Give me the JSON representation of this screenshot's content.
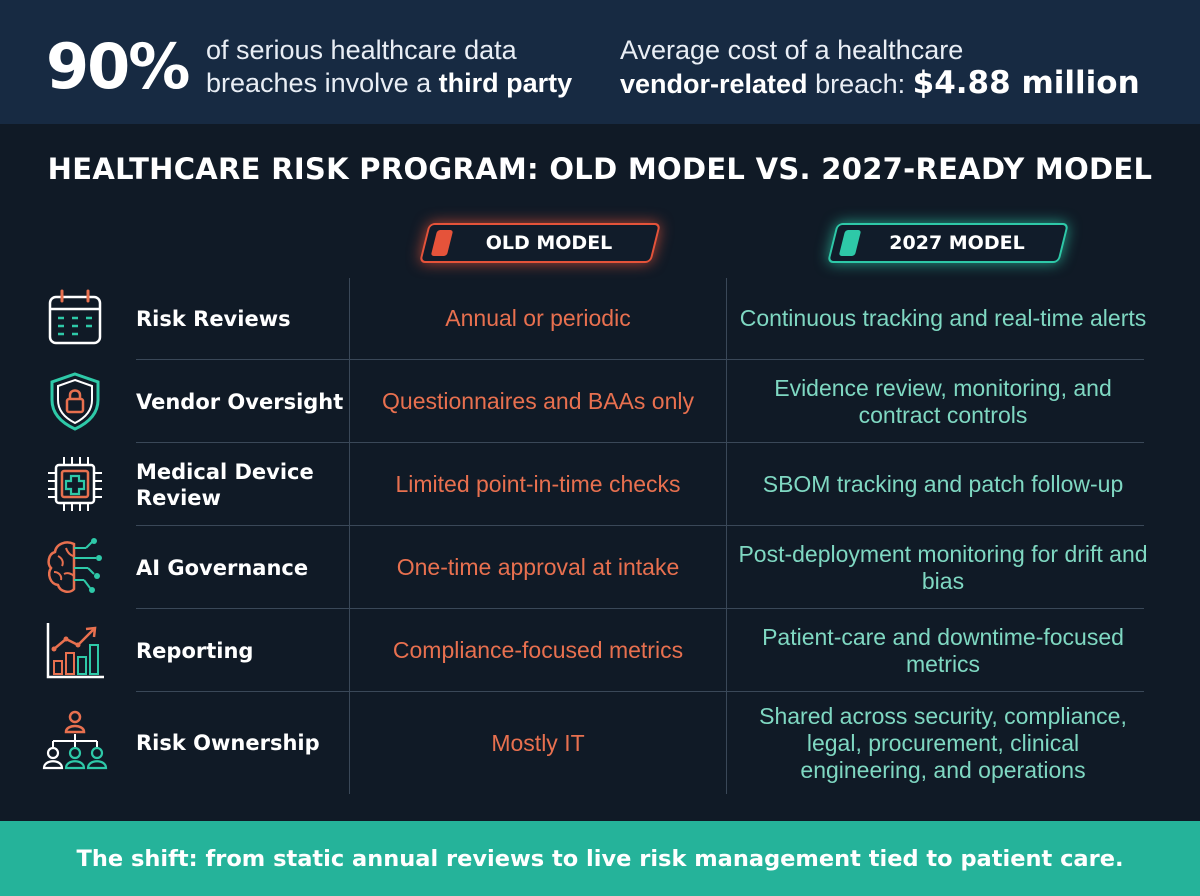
{
  "banner": {
    "stat1_number": "90%",
    "stat1_line1": "of serious healthcare data",
    "stat1_line2_plain": "breaches involve a ",
    "stat1_line2_bold": "third party",
    "stat2_line1": "Average cost of a healthcare",
    "stat2_line2_bold": "vendor-related",
    "stat2_line2_plain": " breach: ",
    "stat2_amount": "$4.88 million"
  },
  "title": "HEALTHCARE RISK PROGRAM: OLD MODEL VS. 2027-READY MODEL",
  "columns": {
    "old": "OLD MODEL",
    "new": "2027 MODEL"
  },
  "rows": [
    {
      "icon": "calendar-icon",
      "label": "Risk Reviews",
      "old": "Annual or periodic",
      "new": "Continuous tracking and real-time alerts"
    },
    {
      "icon": "shield-lock-icon",
      "label": "Vendor Oversight",
      "old": "Questionnaires and BAAs only",
      "new": "Evidence review, monitoring, and contract controls"
    },
    {
      "icon": "medical-chip-icon",
      "label": "Medical Device Review",
      "old": "Limited point-in-time checks",
      "new": "SBOM tracking and patch follow-up"
    },
    {
      "icon": "ai-brain-icon",
      "label": "AI Governance",
      "old": "One-time approval at intake",
      "new": "Post-deployment monitoring for drift and bias"
    },
    {
      "icon": "growth-chart-icon",
      "label": "Reporting",
      "old": "Compliance-focused metrics",
      "new": "Patient-care and downtime-focused metrics"
    },
    {
      "icon": "org-people-icon",
      "label": "Risk Ownership",
      "old": "Mostly IT",
      "new": "Shared across security, compliance, legal, procurement, clinical engineering, and operations"
    }
  ],
  "footer": "The shift: from static annual reviews to live risk management tied to patient care.",
  "colors": {
    "background": "#101a26",
    "banner": "#172a42",
    "old_accent": "#e5533a",
    "new_accent": "#2ec9a8",
    "footer": "#25b39a"
  }
}
